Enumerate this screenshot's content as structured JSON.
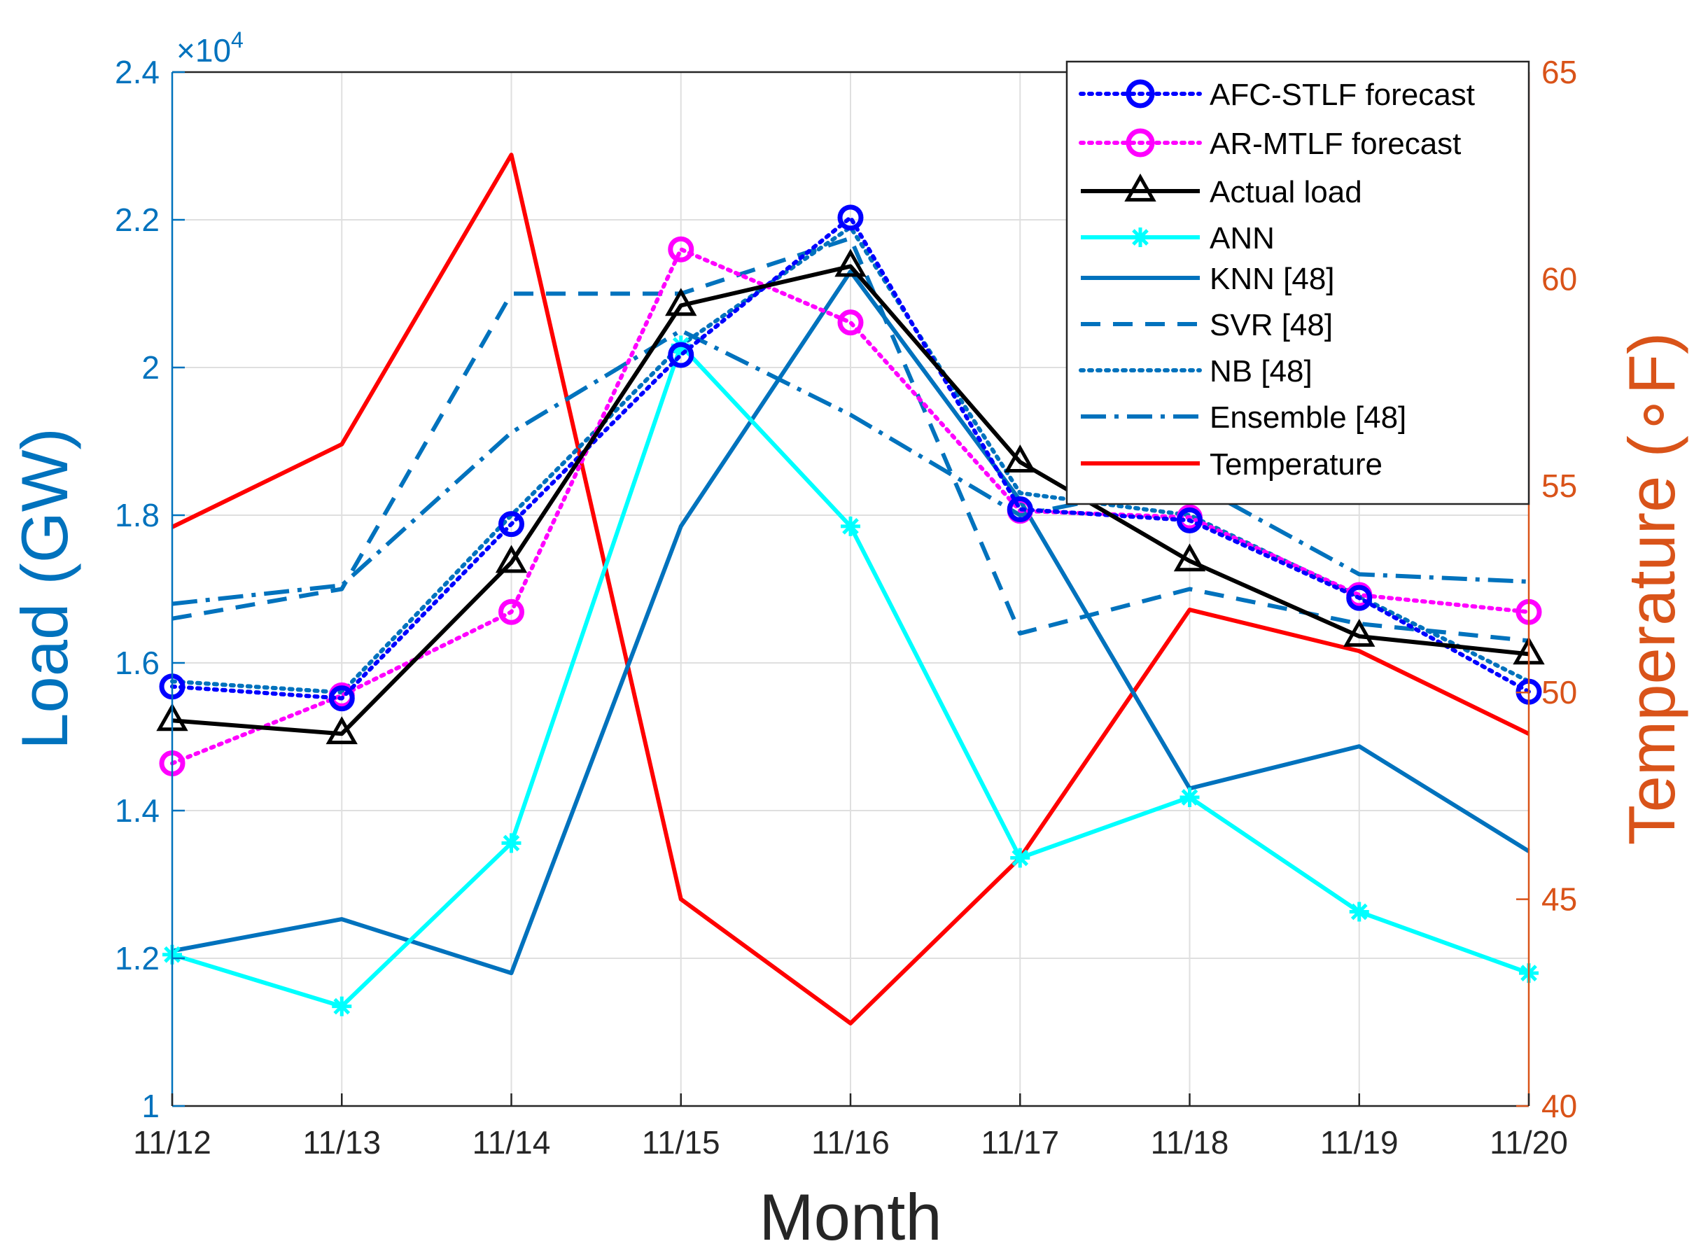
{
  "chart_data": {
    "type": "line",
    "x_label": "Month",
    "y_label_left": "Load (GW)",
    "y_label_right": "Temperature (∘F)",
    "y_exponent_prefix": "×10",
    "y_exponent_power": "4",
    "categories": [
      "11/12",
      "11/13",
      "11/14",
      "11/15",
      "11/16",
      "11/17",
      "11/18",
      "11/19",
      "11/20"
    ],
    "ylim_left": [
      1,
      2.4
    ],
    "yticks_left": [
      "1",
      "1.2",
      "1.4",
      "1.6",
      "1.8",
      "2",
      "2.2",
      "2.4"
    ],
    "ylim_right": [
      40,
      65
    ],
    "yticks_right": [
      "40",
      "45",
      "50",
      "55",
      "60",
      "65"
    ],
    "grid": true,
    "legend_position": "top-right",
    "series": [
      {
        "name": "AFC-STLF forecast",
        "axis": "left",
        "color": "#0000ff",
        "dash": "dotted",
        "marker": "circle",
        "values": [
          1.568,
          1.552,
          1.788,
          2.017,
          2.203,
          1.808,
          1.793,
          1.688,
          1.561
        ]
      },
      {
        "name": "AR-MTLF forecast",
        "axis": "left",
        "color": "#ff00ff",
        "dash": "dotted",
        "marker": "circle",
        "values": [
          1.464,
          1.556,
          1.669,
          2.16,
          2.061,
          1.806,
          1.797,
          1.692,
          1.669
        ]
      },
      {
        "name": "Actual load",
        "axis": "left",
        "color": "#000000",
        "dash": "solid",
        "marker": "triangle",
        "values": [
          1.522,
          1.504,
          1.736,
          2.084,
          2.137,
          1.872,
          1.738,
          1.636,
          1.612
        ]
      },
      {
        "name": "ANN",
        "axis": "left",
        "color": "#00ffff",
        "dash": "solid",
        "marker": "star",
        "values": [
          1.205,
          1.135,
          1.356,
          2.03,
          1.785,
          1.336,
          1.418,
          1.263,
          1.18
        ]
      },
      {
        "name": "KNN [48]",
        "axis": "left",
        "color": "#0072bd",
        "dash": "solid",
        "marker": "none",
        "values": [
          1.21,
          1.253,
          1.18,
          1.785,
          2.13,
          1.82,
          1.43,
          1.487,
          1.345
        ]
      },
      {
        "name": "SVR [48]",
        "axis": "left",
        "color": "#0072bd",
        "dash": "dashed",
        "marker": "none",
        "values": [
          1.66,
          1.7,
          2.1,
          2.1,
          2.175,
          1.64,
          1.7,
          1.653,
          1.63
        ]
      },
      {
        "name": "NB [48]",
        "axis": "left",
        "color": "#0072bd",
        "dash": "dotted",
        "marker": "none",
        "values": [
          1.575,
          1.56,
          1.8,
          2.03,
          2.19,
          1.83,
          1.8,
          1.69,
          1.575
        ]
      },
      {
        "name": "Ensemble [48]",
        "axis": "left",
        "color": "#0072bd",
        "dash": "dashdot",
        "marker": "none",
        "values": [
          1.68,
          1.705,
          1.912,
          2.05,
          1.936,
          1.8,
          1.846,
          1.72,
          1.71
        ]
      },
      {
        "name": "Temperature",
        "axis": "right",
        "color": "#ff0000",
        "dash": "solid",
        "marker": "none",
        "values": [
          54,
          56,
          63,
          45,
          42,
          46,
          52,
          51,
          49
        ]
      }
    ]
  }
}
